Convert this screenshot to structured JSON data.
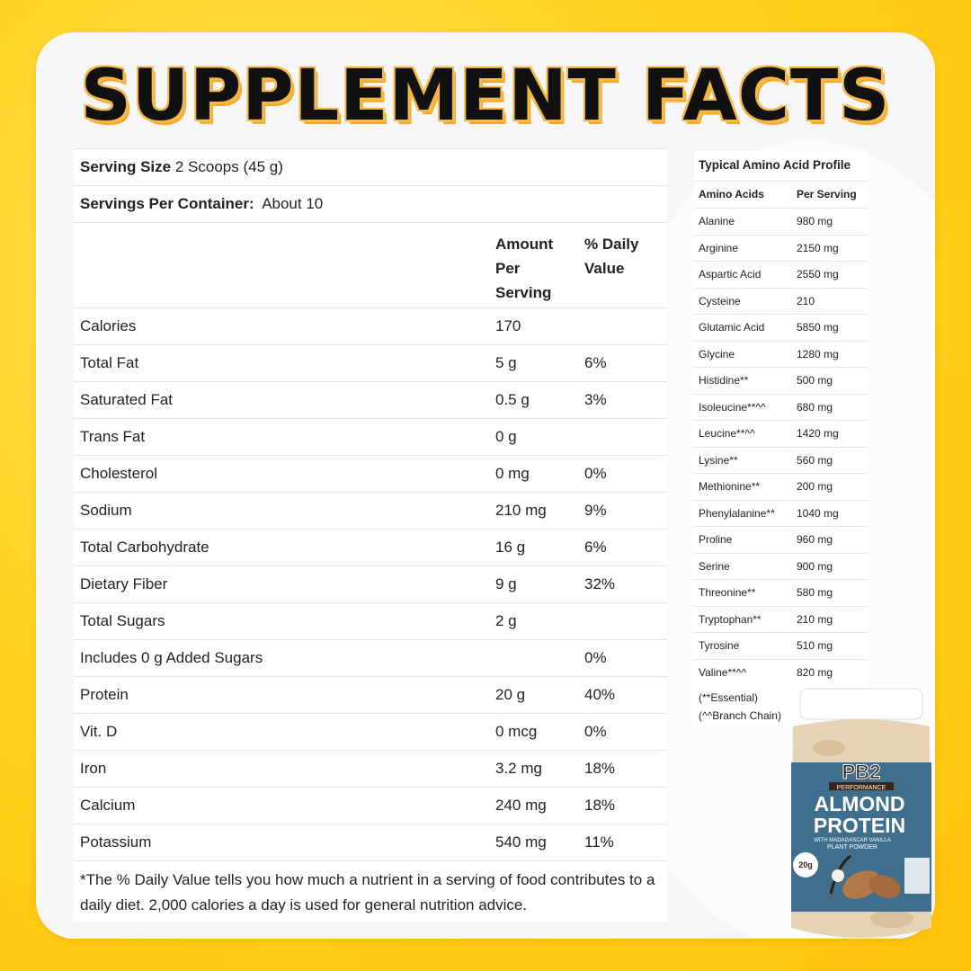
{
  "headline": "SUPPLEMENT FACTS",
  "facts": {
    "serving_size_label": "Serving Size",
    "serving_size_value": "2 Scoops (45 g)",
    "servings_label": "Servings Per Container:",
    "servings_value": "About 10",
    "col_amount": "Amount Per Serving",
    "col_dv": "% Daily Value",
    "rows": [
      {
        "name": "Calories",
        "amount": "170",
        "dv": ""
      },
      {
        "name": "Total Fat",
        "amount": "5 g",
        "dv": "6%"
      },
      {
        "name": "Saturated Fat",
        "amount": "0.5 g",
        "dv": "3%"
      },
      {
        "name": "Trans Fat",
        "amount": "0 g",
        "dv": ""
      },
      {
        "name": "Cholesterol",
        "amount": "0 mg",
        "dv": "0%"
      },
      {
        "name": "Sodium",
        "amount": "210 mg",
        "dv": "9%"
      },
      {
        "name": "Total Carbohydrate",
        "amount": "16 g",
        "dv": "6%"
      },
      {
        "name": "Dietary Fiber",
        "amount": "9 g",
        "dv": "32%"
      },
      {
        "name": "Total Sugars",
        "amount": "2 g",
        "dv": ""
      },
      {
        "name": "Includes 0 g Added Sugars",
        "amount": "",
        "dv": "0%"
      },
      {
        "name": "Protein",
        "amount": "20 g",
        "dv": "40%"
      },
      {
        "name": "Vit. D",
        "amount": "0 mcg",
        "dv": "0%"
      },
      {
        "name": "Iron",
        "amount": "3.2 mg",
        "dv": "18%"
      },
      {
        "name": "Calcium",
        "amount": "240 mg",
        "dv": "18%"
      },
      {
        "name": "Potassium",
        "amount": "540 mg",
        "dv": "11%"
      }
    ],
    "footnote": "*The % Daily Value tells you how much a nutrient in a serving of food contributes to a daily diet. 2,000 calories a day is used for general nutrition advice."
  },
  "amino": {
    "title": "Typical Amino Acid Profile",
    "col_name": "Amino Acids",
    "col_value": "Per Serving",
    "rows": [
      {
        "name": "Alanine",
        "value": "980 mg"
      },
      {
        "name": "Arginine",
        "value": "2150 mg"
      },
      {
        "name": "Aspartic Acid",
        "value": "2550 mg"
      },
      {
        "name": "Cysteine",
        "value": "210"
      },
      {
        "name": "Glutamic Acid",
        "value": "5850 mg"
      },
      {
        "name": "Glycine",
        "value": "1280 mg"
      },
      {
        "name": "Histidine**",
        "value": "500 mg"
      },
      {
        "name": "Isoleucine**^^",
        "value": "680 mg"
      },
      {
        "name": "Leucine**^^",
        "value": "1420 mg"
      },
      {
        "name": "Lysine**",
        "value": "560 mg"
      },
      {
        "name": "Methionine**",
        "value": "200 mg"
      },
      {
        "name": "Phenylalanine**",
        "value": "1040 mg"
      },
      {
        "name": "Proline",
        "value": "960 mg"
      },
      {
        "name": "Serine",
        "value": "900 mg"
      },
      {
        "name": "Threonine**",
        "value": "580 mg"
      },
      {
        "name": "Tryptophan**",
        "value": "210 mg"
      },
      {
        "name": "Tyrosine",
        "value": "510 mg"
      },
      {
        "name": "Valine**^^",
        "value": "820 mg"
      }
    ],
    "note_essential": "(**Essential)",
    "note_branch": "(^^Branch Chain)"
  },
  "product": {
    "brand": "PB2",
    "line": "PERFORMANCE",
    "name_1": "ALMOND",
    "name_2": "PROTEIN",
    "flavor": "WITH MADAGASCAR VANILLA",
    "type": "PLANT POWDER",
    "badge_num": "20g",
    "colors": {
      "label": "#3f6f8c",
      "lid": "#ffffff",
      "powder": "#e8d3b6"
    }
  }
}
